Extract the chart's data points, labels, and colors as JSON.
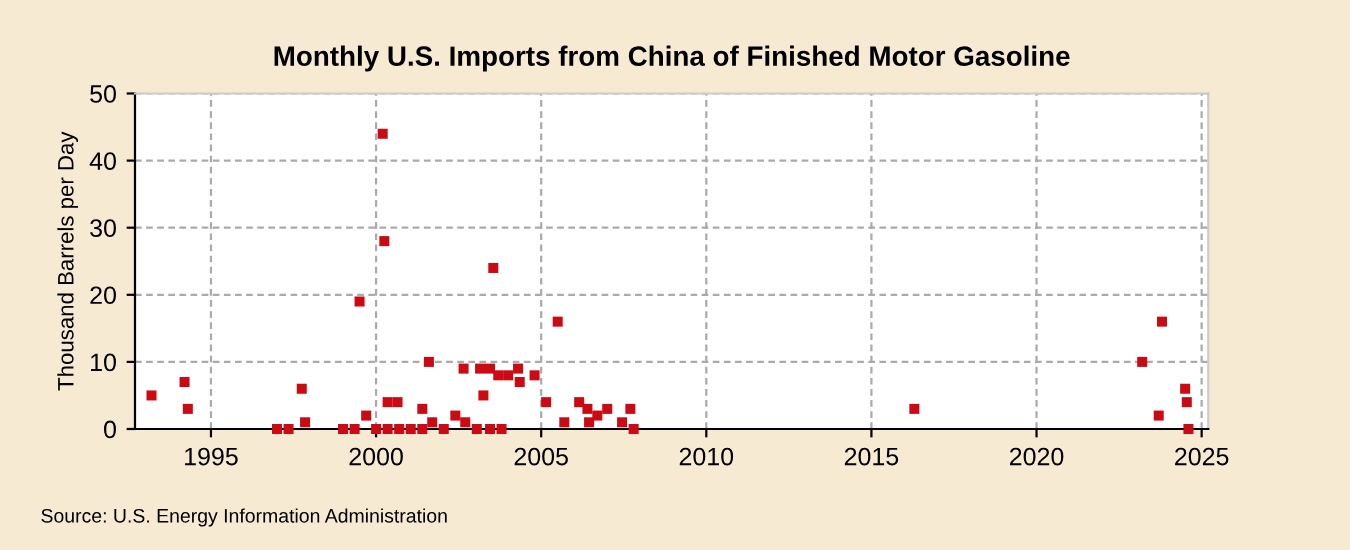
{
  "chart_data": {
    "type": "scatter",
    "title": "Monthly U.S. Imports from China of Finished Motor Gasoline",
    "ylabel": "Thousand Barrels per Day",
    "x": [
      1993.2,
      1994.2,
      1994.3,
      1997.0,
      1997.35,
      1997.75,
      1997.85,
      1999.0,
      1999.35,
      1999.5,
      1999.7,
      2000.0,
      2000.2,
      2000.25,
      2000.35,
      2000.65,
      2000.35,
      2000.7,
      2001.05,
      2001.4,
      2001.4,
      2001.6,
      2001.7,
      2002.05,
      2002.4,
      2002.65,
      2002.7,
      2003.05,
      2003.15,
      2003.25,
      2003.45,
      2003.45,
      2003.55,
      2003.7,
      2003.8,
      2004.0,
      2004.3,
      2004.35,
      2004.8,
      2005.15,
      2005.5,
      2005.7,
      2006.15,
      2006.4,
      2006.45,
      2006.7,
      2007.0,
      2007.45,
      2007.7,
      2007.8,
      2016.3,
      2023.2,
      2023.7,
      2023.8,
      2024.5,
      2024.55,
      2024.6
    ],
    "values": [
      5,
      7,
      3,
      0,
      0,
      6,
      1,
      0,
      0,
      19,
      2,
      0,
      44,
      28,
      4,
      4,
      0,
      0,
      0,
      0,
      3,
      10,
      1,
      0,
      2,
      9,
      1,
      0,
      9,
      5,
      9,
      0,
      24,
      8,
      0,
      8,
      9,
      7,
      8,
      4,
      16,
      1,
      4,
      3,
      1,
      2,
      3,
      1,
      3,
      0,
      3,
      10,
      2,
      16,
      6,
      4,
      0
    ],
    "color": "#cc0a14",
    "marker": "square",
    "xlim": [
      1992.7,
      2025.2
    ],
    "xticks": [
      1995,
      2000,
      2005,
      2010,
      2015,
      2020,
      2025
    ],
    "ylim": [
      0,
      50
    ],
    "yticks": [
      0,
      10,
      20,
      30,
      40,
      50
    ],
    "grid": true,
    "annotations": [
      "Source: U.S. Energy Information Administration"
    ]
  }
}
